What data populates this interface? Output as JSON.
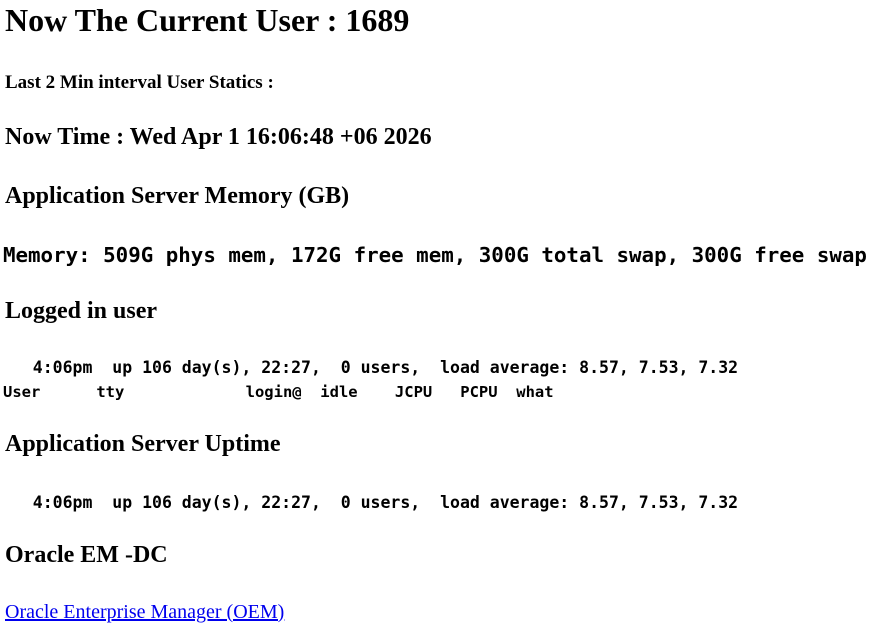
{
  "header": {
    "current_user_heading": "Now The Current User : 1689",
    "interval_note": "Last 2 Min interval User Statics :",
    "now_time_heading": "Now Time : Wed Apr 1 16:06:48 +06 2026"
  },
  "memory_section": {
    "heading": "Application Server Memory (GB)",
    "memory_line": "Memory: 509G phys mem, 172G free mem, 300G total swap, 300G free swap",
    "stats": {
      "phys_mem": "509G",
      "free_mem": "172G",
      "total_swap": "300G",
      "free_swap": "300G"
    }
  },
  "logged_in_section": {
    "heading": "Logged in user",
    "uptime_line": "   4:06pm  up 106 day(s), 22:27,  0 users,  load average: 8.57, 7.53, 7.32",
    "who_header_line": "User      tty             login@  idle    JCPU   PCPU  what",
    "stats": {
      "time": "4:06pm",
      "up_days": "106 day(s), 22:27",
      "users": "0",
      "load_average": [
        "8.57",
        "7.53",
        "7.32"
      ]
    }
  },
  "uptime_section": {
    "heading": "Application Server Uptime",
    "uptime_line": "   4:06pm  up 106 day(s), 22:27,  0 users,  load average: 8.57, 7.53, 7.32"
  },
  "oem_section": {
    "heading": "Oracle EM -DC",
    "link_label": "Oracle Enterprise Manager (OEM)"
  },
  "colors": {
    "background": "#FFFFFF",
    "text": "#000000",
    "link": "#0000EE"
  }
}
